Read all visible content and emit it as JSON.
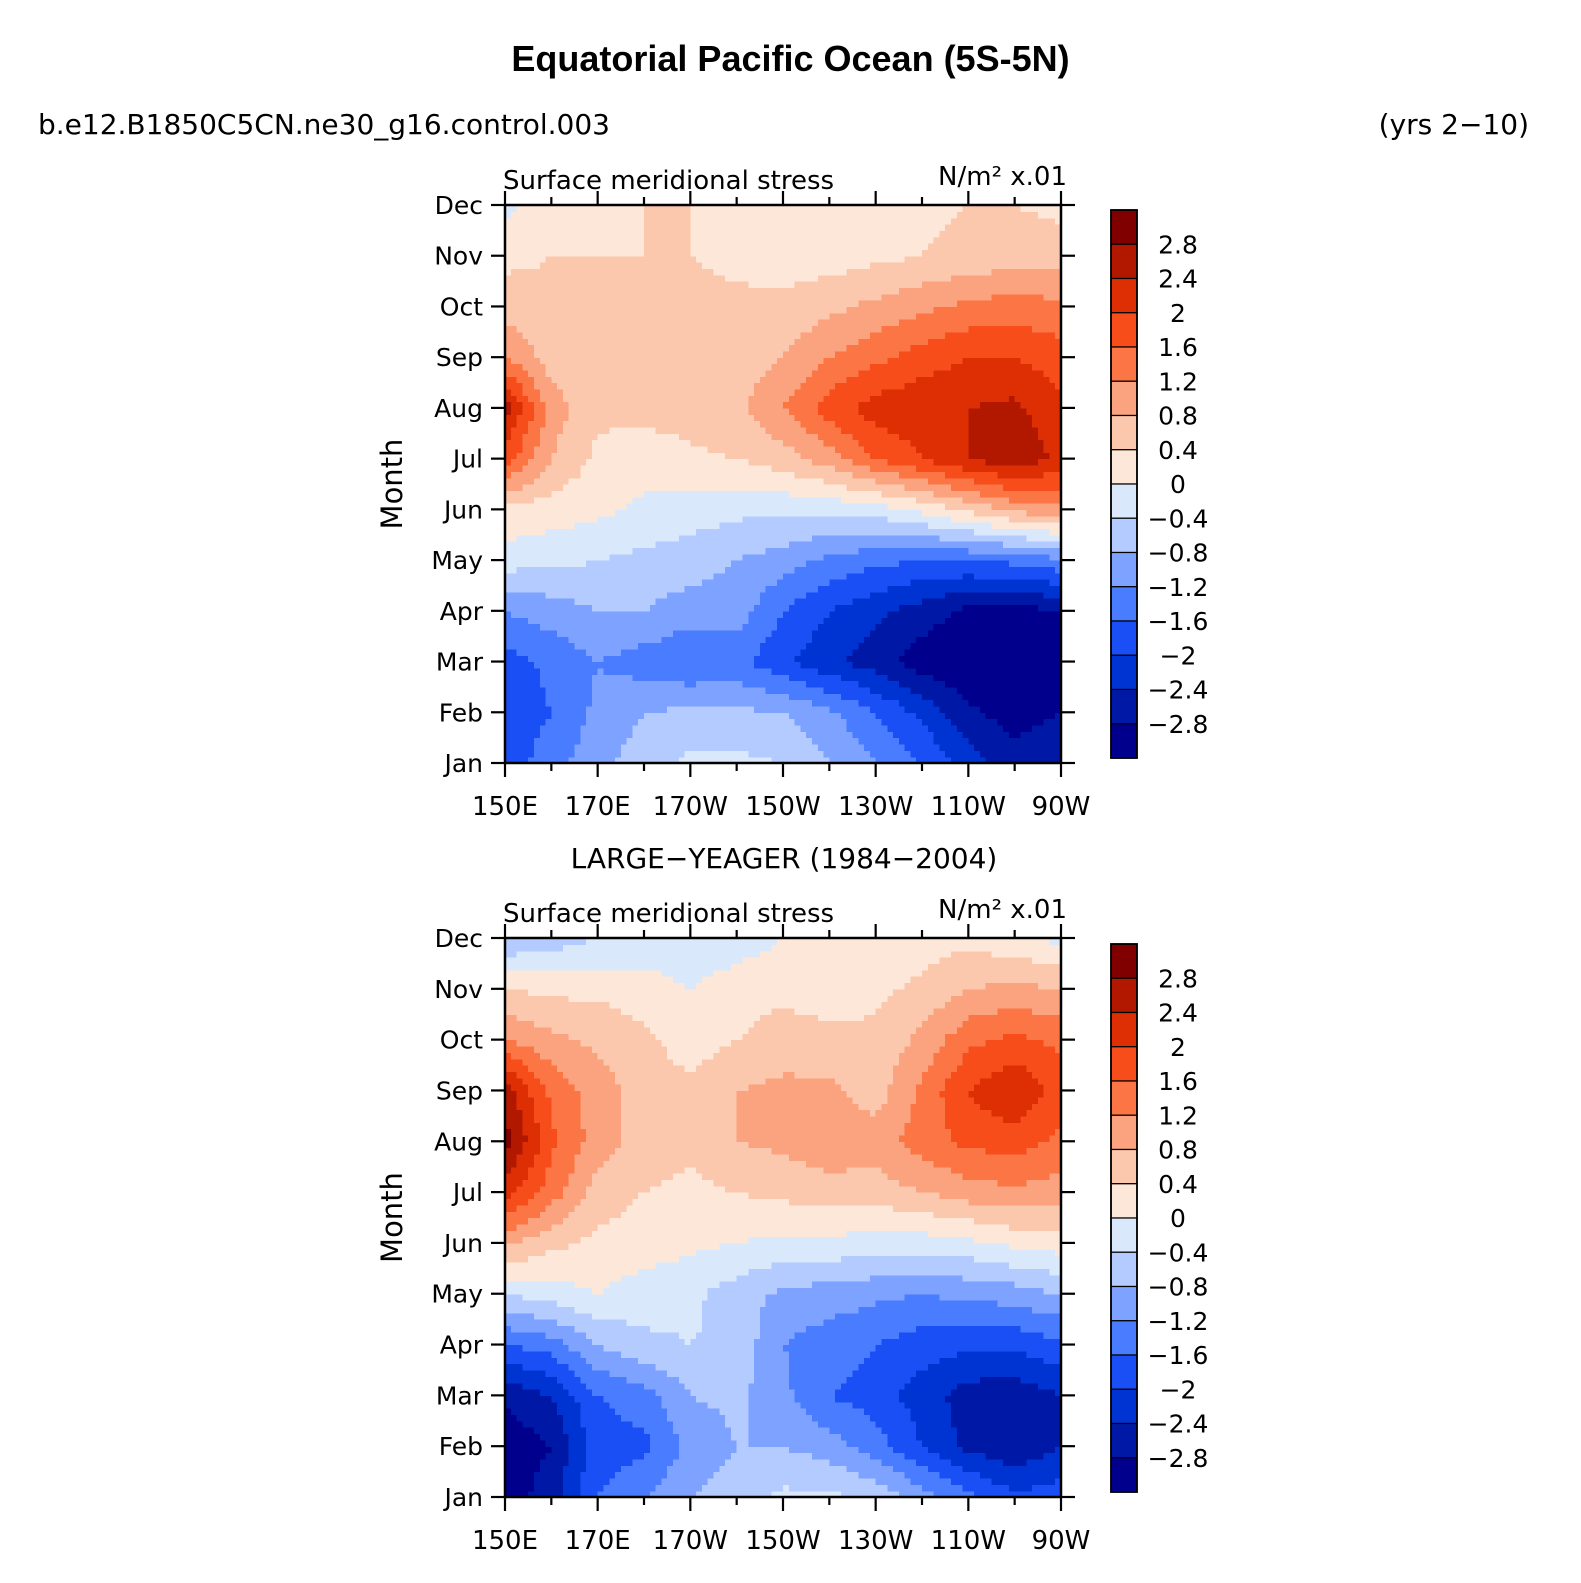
{
  "header": {
    "title": "Equatorial Pacific Ocean (5S-5N)",
    "case_name": "b.e12.B1850C5CN.ne30_g16.control.003",
    "years": "(yrs 2−10)"
  },
  "chart_data": [
    {
      "type": "heatmap",
      "title": "",
      "left_string": "Surface meridional stress",
      "right_string": "N/m² x.01",
      "ylabel": "Month",
      "xlabel": "",
      "x_ticks": [
        "150E",
        "170E",
        "170W",
        "150W",
        "130W",
        "110W",
        "90W"
      ],
      "x_lon": [
        150,
        170,
        190,
        210,
        230,
        250,
        270
      ],
      "xlim": [
        150,
        270
      ],
      "y_ticks": [
        "Jan",
        "Feb",
        "Mar",
        "Apr",
        "May",
        "Jun",
        "Jul",
        "Aug",
        "Sep",
        "Oct",
        "Nov",
        "Dec"
      ],
      "color_levels": [
        -2.8,
        -2.4,
        -2,
        -1.6,
        -1.2,
        -0.8,
        -0.4,
        0,
        0.4,
        0.8,
        1.2,
        1.6,
        2,
        2.4,
        2.8
      ],
      "colorbar_labels": [
        "2.8",
        "2.4",
        "2",
        "1.6",
        "1.2",
        "0.8",
        "0.4",
        "0",
        "−0.4",
        "−0.8",
        "−1.2",
        "−1.6",
        "−2",
        "−2.4",
        "−2.8"
      ],
      "x": [
        150,
        160,
        170,
        180,
        190,
        200,
        210,
        220,
        230,
        240,
        250,
        260,
        270
      ],
      "z": [
        [
          -1.8,
          -1.4,
          -0.9,
          -0.6,
          -0.3,
          -0.3,
          -0.4,
          -0.8,
          -1.2,
          -1.6,
          -2.2,
          -2.6,
          -2.4
        ],
        [
          -1.9,
          -1.6,
          -1.1,
          -0.8,
          -0.7,
          -0.7,
          -0.8,
          -1.1,
          -1.6,
          -2.1,
          -2.7,
          -3.0,
          -2.8
        ],
        [
          -1.8,
          -1.5,
          -1.2,
          -1.4,
          -1.6,
          -1.5,
          -1.9,
          -2.3,
          -2.6,
          -3.0,
          -3.2,
          -3.2,
          -3.1
        ],
        [
          -1.2,
          -1.0,
          -0.8,
          -0.8,
          -1.0,
          -1.0,
          -1.6,
          -2.0,
          -2.3,
          -2.6,
          -2.9,
          -3.0,
          -2.8
        ],
        [
          -0.2,
          -0.3,
          -0.4,
          -0.5,
          -0.6,
          -0.8,
          -1.0,
          -1.3,
          -1.5,
          -1.6,
          -1.6,
          -1.5,
          -1.3
        ],
        [
          0.3,
          0.2,
          0.1,
          -0.1,
          -0.2,
          -0.3,
          -0.3,
          -0.3,
          -0.2,
          0.1,
          0.5,
          0.9,
          1.1
        ],
        [
          1.8,
          0.8,
          0.3,
          0.2,
          0.3,
          0.4,
          0.6,
          1.0,
          1.6,
          2.0,
          2.4,
          2.7,
          2.3
        ],
        [
          2.6,
          1.0,
          0.5,
          0.5,
          0.6,
          0.7,
          1.2,
          1.8,
          2.2,
          2.3,
          2.4,
          2.5,
          2.1
        ],
        [
          1.2,
          0.6,
          0.5,
          0.5,
          0.6,
          0.6,
          0.8,
          1.2,
          1.5,
          1.8,
          2.0,
          2.0,
          1.8
        ],
        [
          0.6,
          0.5,
          0.5,
          0.5,
          0.5,
          0.5,
          0.5,
          0.7,
          0.9,
          1.1,
          1.3,
          1.4,
          1.3
        ],
        [
          0.3,
          0.4,
          0.4,
          0.4,
          0.4,
          0.3,
          0.2,
          0.2,
          0.3,
          0.4,
          0.5,
          0.6,
          0.6
        ],
        [
          -0.1,
          0.2,
          0.3,
          0.4,
          0.4,
          0.3,
          0.1,
          0.0,
          0.1,
          0.3,
          0.4,
          0.4,
          0.3
        ]
      ]
    },
    {
      "type": "heatmap",
      "title": "LARGE−YEAGER (1984−2004)",
      "left_string": "Surface meridional stress",
      "right_string": "N/m² x.01",
      "ylabel": "Month",
      "xlabel": "",
      "x_ticks": [
        "150E",
        "170E",
        "170W",
        "150W",
        "130W",
        "110W",
        "90W"
      ],
      "x_lon": [
        150,
        170,
        190,
        210,
        230,
        250,
        270
      ],
      "xlim": [
        150,
        270
      ],
      "y_ticks": [
        "Jan",
        "Feb",
        "Mar",
        "Apr",
        "May",
        "Jun",
        "Jul",
        "Aug",
        "Sep",
        "Oct",
        "Nov",
        "Dec"
      ],
      "color_levels": [
        -2.8,
        -2.4,
        -2,
        -1.6,
        -1.2,
        -0.8,
        -0.4,
        0,
        0.4,
        0.8,
        1.2,
        1.6,
        2,
        2.4,
        2.8
      ],
      "colorbar_labels": [
        "2.8",
        "2.4",
        "2",
        "1.6",
        "1.2",
        "0.8",
        "0.4",
        "0",
        "−0.4",
        "−0.8",
        "−1.2",
        "−1.6",
        "−2",
        "−2.4",
        "−2.8"
      ],
      "x": [
        150,
        160,
        170,
        180,
        190,
        200,
        210,
        220,
        230,
        240,
        250,
        260,
        270
      ],
      "z": [
        [
          -3.0,
          -2.6,
          -1.6,
          -1.2,
          -0.8,
          -0.6,
          -0.3,
          -0.3,
          -0.5,
          -1.0,
          -1.5,
          -1.9,
          -1.8
        ],
        [
          -3.1,
          -2.8,
          -1.8,
          -1.7,
          -1.1,
          -0.8,
          -0.8,
          -1.0,
          -1.4,
          -2.0,
          -2.5,
          -2.7,
          -2.4
        ],
        [
          -2.7,
          -2.4,
          -1.6,
          -1.4,
          -0.8,
          -0.7,
          -1.1,
          -1.6,
          -1.8,
          -2.2,
          -2.6,
          -2.7,
          -2.4
        ],
        [
          -1.6,
          -1.4,
          -0.8,
          -0.5,
          -0.4,
          -0.5,
          -1.2,
          -1.4,
          -1.6,
          -1.8,
          -1.9,
          -1.9,
          -1.7
        ],
        [
          -0.4,
          -0.2,
          0.0,
          -0.2,
          -0.3,
          -0.6,
          -0.9,
          -1.0,
          -1.1,
          -1.2,
          -1.1,
          -1.0,
          -0.8
        ],
        [
          0.9,
          0.5,
          0.3,
          0.2,
          0.1,
          0.0,
          -0.1,
          -0.1,
          -0.2,
          -0.2,
          -0.1,
          0.1,
          0.2
        ],
        [
          2.2,
          1.4,
          0.6,
          0.4,
          0.3,
          0.4,
          0.5,
          0.6,
          0.6,
          0.8,
          1.0,
          1.1,
          1.0
        ],
        [
          3.0,
          1.7,
          1.0,
          0.6,
          0.5,
          0.8,
          0.9,
          1.1,
          1.0,
          1.4,
          1.7,
          1.8,
          1.5
        ],
        [
          2.6,
          1.5,
          1.0,
          0.6,
          0.5,
          0.8,
          0.9,
          0.9,
          0.6,
          1.3,
          2.0,
          2.4,
          1.8
        ],
        [
          1.2,
          0.9,
          0.7,
          0.5,
          0.2,
          0.4,
          0.6,
          0.5,
          0.5,
          0.9,
          1.5,
          1.7,
          1.5
        ],
        [
          0.4,
          0.3,
          0.3,
          0.2,
          0.0,
          0.2,
          0.3,
          0.2,
          0.3,
          0.5,
          0.8,
          0.9,
          0.8
        ],
        [
          -0.8,
          -0.6,
          -0.4,
          -0.3,
          -0.3,
          -0.2,
          0.0,
          0.1,
          0.2,
          0.2,
          0.3,
          0.1,
          -0.1
        ]
      ]
    }
  ],
  "palette": {
    "colors": [
      "#00008c",
      "#0018a6",
      "#0034d2",
      "#1a4ff5",
      "#4a7cff",
      "#7ea2ff",
      "#b3cbff",
      "#d9e9fb",
      "#fde7d8",
      "#fbc7ad",
      "#fba37f",
      "#fb7545",
      "#f64d1b",
      "#de2f04",
      "#b21800",
      "#800000"
    ]
  }
}
